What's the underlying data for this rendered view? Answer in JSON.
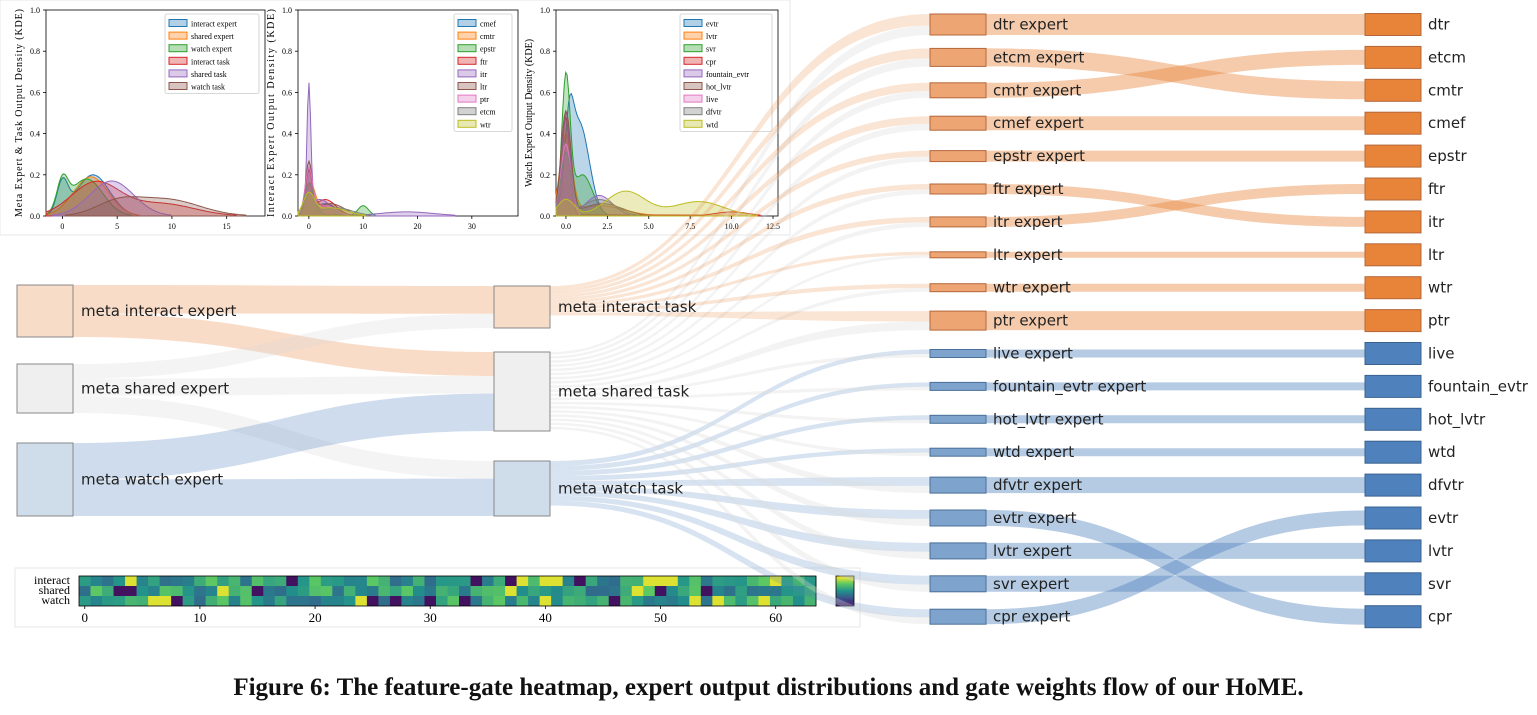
{
  "caption": "Figure 6: The feature-gate heatmap, expert output distributions and gate weights flow of our HoME.",
  "chart_data": [
    {
      "type": "area",
      "ylabel": "Meta Expert & Task Output Density (KDE)",
      "xticks": [
        "0",
        "5",
        "10",
        "15"
      ],
      "yticks": [
        "0.0",
        "0.2",
        "0.4",
        "0.6",
        "0.8",
        "1.0"
      ],
      "xlim": [
        -1.5,
        18.5
      ],
      "ylim": [
        0,
        1.0
      ],
      "legend_position": "top-right",
      "series": [
        {
          "name": "interact expert",
          "color": "#1f77b4",
          "peaks": [
            [
              0,
              0.15,
              0.5
            ],
            [
              2.8,
              0.2,
              1.5
            ]
          ]
        },
        {
          "name": "shared expert",
          "color": "#ff7f0e",
          "peaks": [
            [
              2.6,
              0.19,
              1.6
            ]
          ]
        },
        {
          "name": "watch expert",
          "color": "#2ca02c",
          "peaks": [
            [
              0,
              0.14,
              0.5
            ],
            [
              2.2,
              0.18,
              1.5
            ]
          ]
        },
        {
          "name": "interact task",
          "color": "#d62728",
          "peaks": [
            [
              3,
              0.16,
              2.2
            ],
            [
              9,
              0.06,
              3
            ]
          ]
        },
        {
          "name": "shared task",
          "color": "#9467bd",
          "peaks": [
            [
              4.5,
              0.17,
              2
            ]
          ]
        },
        {
          "name": "watch task",
          "color": "#8c564b",
          "peaks": [
            [
              5,
              0.06,
              2
            ],
            [
              9.5,
              0.08,
              3
            ]
          ]
        }
      ]
    },
    {
      "type": "area",
      "ylabel": "Interact Expert Output Density (KDE)",
      "xticks": [
        "0",
        "10",
        "20",
        "30"
      ],
      "yticks": [
        "0.0",
        "0.2",
        "0.4",
        "0.6",
        "0.8",
        "1.0"
      ],
      "xlim": [
        -2,
        38.5
      ],
      "ylim": [
        0,
        1.0
      ],
      "legend_position": "top-right",
      "series": [
        {
          "name": "cmef",
          "color": "#1f77b4",
          "peaks": [
            [
              0,
              0.2,
              0.7
            ],
            [
              3,
              0.06,
              2
            ]
          ]
        },
        {
          "name": "cmtr",
          "color": "#ff7f0e",
          "peaks": [
            [
              0.3,
              0.14,
              0.8
            ],
            [
              3,
              0.05,
              2
            ]
          ]
        },
        {
          "name": "epstr",
          "color": "#2ca02c",
          "peaks": [
            [
              0.3,
              0.12,
              1
            ],
            [
              10,
              0.05,
              1
            ]
          ]
        },
        {
          "name": "ftr",
          "color": "#d62728",
          "peaks": [
            [
              0,
              0.2,
              0.6
            ],
            [
              3,
              0.08,
              2
            ]
          ]
        },
        {
          "name": "itr",
          "color": "#9467bd",
          "peaks": [
            [
              0,
              0.6,
              0.35
            ],
            [
              2,
              0.08,
              2
            ],
            [
              18,
              0.02,
              5
            ]
          ]
        },
        {
          "name": "ltr",
          "color": "#8c564b",
          "peaks": [
            [
              0,
              0.25,
              0.6
            ],
            [
              4,
              0.06,
              2.5
            ]
          ]
        },
        {
          "name": "ptr",
          "color": "#e377c2",
          "peaks": [
            [
              0,
              0.22,
              0.7
            ],
            [
              3,
              0.05,
              2
            ]
          ]
        },
        {
          "name": "etcm",
          "color": "#7f7f7f",
          "peaks": [
            [
              0,
              0.15,
              0.8
            ],
            [
              5,
              0.04,
              3
            ]
          ]
        },
        {
          "name": "wtr",
          "color": "#bcbd22",
          "peaks": [
            [
              0,
              0.1,
              1
            ],
            [
              4,
              0.04,
              3
            ]
          ]
        }
      ]
    },
    {
      "type": "area",
      "ylabel": "Watch Expert Output Density (KDE)",
      "xticks": [
        "0.0",
        "2.5",
        "5.0",
        "7.5",
        "10.0",
        "12.5"
      ],
      "yticks": [
        "0.0",
        "0.2",
        "0.4",
        "0.6",
        "0.8",
        "1.0"
      ],
      "xlim": [
        -0.6,
        12.8
      ],
      "ylim": [
        0,
        1.0
      ],
      "legend_position": "top-right",
      "series": [
        {
          "name": "evtr",
          "color": "#1f77b4",
          "peaks": [
            [
              0.2,
              0.3,
              0.25
            ],
            [
              0.8,
              0.45,
              0.6
            ]
          ]
        },
        {
          "name": "lvtr",
          "color": "#ff7f0e",
          "peaks": [
            [
              0,
              0.38,
              0.35
            ],
            [
              2,
              0.05,
              1.5
            ]
          ]
        },
        {
          "name": "svr",
          "color": "#2ca02c",
          "peaks": [
            [
              0,
              0.65,
              0.25
            ],
            [
              1,
              0.2,
              0.6
            ]
          ]
        },
        {
          "name": "cpr",
          "color": "#d62728",
          "peaks": [
            [
              0,
              0.48,
              0.25
            ],
            [
              10,
              0.02,
              1
            ]
          ]
        },
        {
          "name": "fountain_evtr",
          "color": "#9467bd",
          "peaks": [
            [
              0,
              0.5,
              0.25
            ],
            [
              2,
              0.1,
              0.8
            ]
          ]
        },
        {
          "name": "hot_lvtr",
          "color": "#8c564b",
          "peaks": [
            [
              0,
              0.5,
              0.3
            ],
            [
              2.2,
              0.06,
              1.2
            ]
          ]
        },
        {
          "name": "live",
          "color": "#e377c2",
          "peaks": [
            [
              0,
              0.35,
              0.3
            ]
          ]
        },
        {
          "name": "dfvtr",
          "color": "#7f7f7f",
          "peaks": [
            [
              0,
              0.3,
              0.3
            ],
            [
              2,
              0.08,
              1
            ]
          ]
        },
        {
          "name": "wtd",
          "color": "#bcbd22",
          "peaks": [
            [
              0,
              0.08,
              0.5
            ],
            [
              3.6,
              0.12,
              1.2
            ],
            [
              8,
              0.07,
              1.5
            ]
          ]
        }
      ]
    },
    {
      "type": "heatmap",
      "row_labels": [
        "interact",
        "shared",
        "watch"
      ],
      "xticks": [
        "0",
        "10",
        "20",
        "30",
        "40",
        "50",
        "60"
      ],
      "columns": 64,
      "colormap": [
        "#440154",
        "#3b528b",
        "#21918c",
        "#5ec962",
        "#fde725"
      ]
    },
    {
      "type": "sankey",
      "meta_experts": [
        "meta interact expert",
        "meta shared expert",
        "meta watch expert"
      ],
      "meta_tasks": [
        "meta interact task",
        "meta shared task",
        "meta watch task"
      ],
      "experts": [
        "dtr expert",
        "etcm expert",
        "cmtr expert",
        "cmef expert",
        "epstr expert",
        "ftr expert",
        "itr expert",
        "ltr expert",
        "wtr expert",
        "ptr expert",
        "live expert",
        "fountain_evtr expert",
        "hot_lvtr expert",
        "wtd expert",
        "dfvtr expert",
        "evtr expert",
        "lvtr expert",
        "svr expert",
        "cpr expert"
      ],
      "tasks": [
        "dtr",
        "etcm",
        "cmtr",
        "cmef",
        "epstr",
        "ftr",
        "itr",
        "ltr",
        "wtr",
        "ptr",
        "live",
        "fountain_evtr",
        "hot_lvtr",
        "wtd",
        "dfvtr",
        "evtr",
        "lvtr",
        "svr",
        "cpr"
      ],
      "orange": "#e8833a",
      "blue": "#4f81bd",
      "grey": "#d9d9d9"
    }
  ]
}
